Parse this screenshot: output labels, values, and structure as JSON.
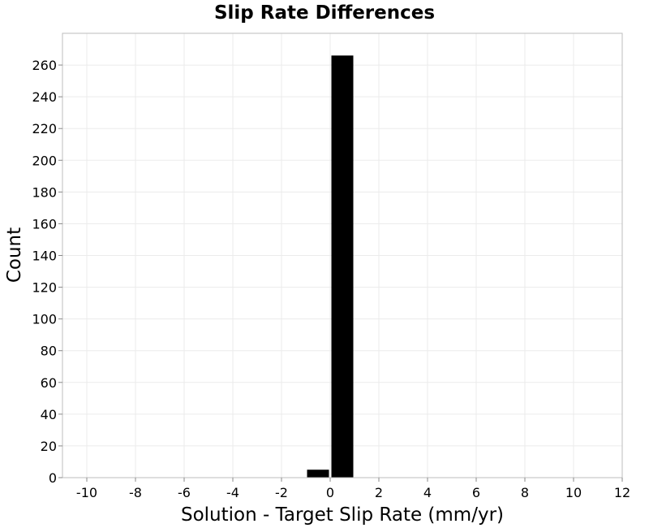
{
  "chart_data": {
    "type": "bar",
    "title": "Slip Rate Differences",
    "xlabel": "Solution - Target Slip Rate (mm/yr)",
    "ylabel": "Count",
    "xlim": [
      -11,
      12
    ],
    "ylim": [
      0,
      280
    ],
    "xticks": [
      -10,
      -8,
      -6,
      -4,
      -2,
      0,
      2,
      4,
      6,
      8,
      10,
      12
    ],
    "yticks": [
      0,
      20,
      40,
      60,
      80,
      100,
      120,
      140,
      160,
      180,
      200,
      220,
      240,
      260
    ],
    "grid": true,
    "bar_width": 0.9,
    "bars": [
      {
        "x": -0.5,
        "value": 5
      },
      {
        "x": 0.5,
        "value": 266
      }
    ],
    "colors": {
      "bar": "#000000",
      "grid": "#ebebeb",
      "frame": "#bdbdbd",
      "background": "#ffffff"
    }
  }
}
